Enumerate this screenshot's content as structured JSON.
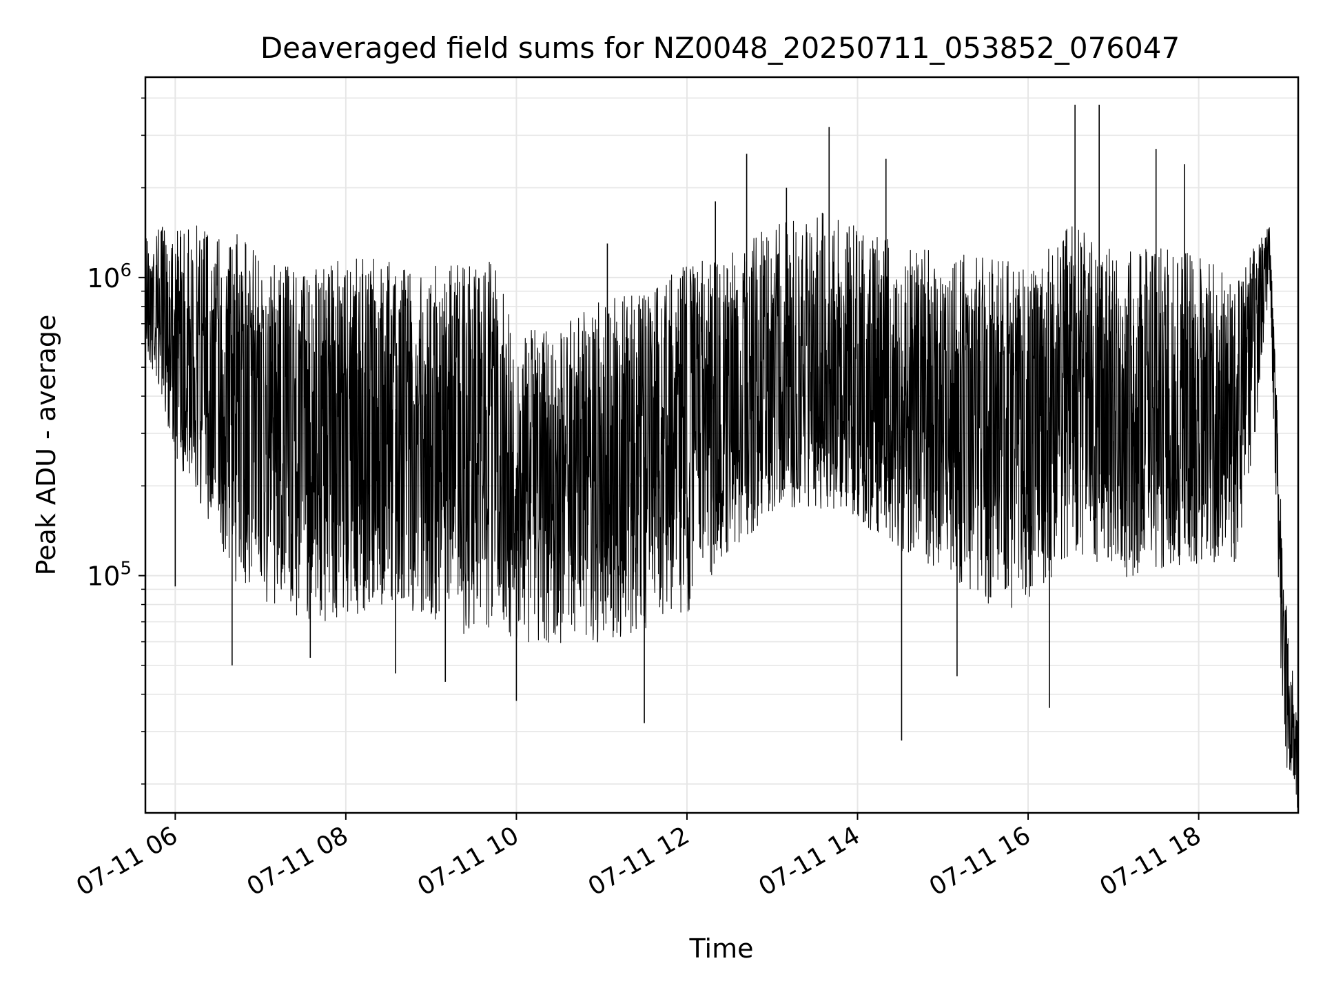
{
  "chart_data": {
    "type": "line",
    "title": "Deaveraged field sums for NZ0048_20250711_053852_076047",
    "xlabel": "Time",
    "ylabel": "Peak ADU - average",
    "yscale": "log",
    "ylim": [
      16000,
      4700000
    ],
    "xlim": [
      "2025-07-11 05:39",
      "2025-07-11 19:10"
    ],
    "grid": true,
    "legend": "none",
    "line_color": "#000000",
    "x_ticks": [
      {
        "value": "2025-07-11 06:00",
        "label": "07-11 06"
      },
      {
        "value": "2025-07-11 08:00",
        "label": "07-11 08"
      },
      {
        "value": "2025-07-11 10:00",
        "label": "07-11 10"
      },
      {
        "value": "2025-07-11 12:00",
        "label": "07-11 12"
      },
      {
        "value": "2025-07-11 14:00",
        "label": "07-11 14"
      },
      {
        "value": "2025-07-11 16:00",
        "label": "07-11 16"
      },
      {
        "value": "2025-07-11 18:00",
        "label": "07-11 18"
      }
    ],
    "y_ticks": [
      {
        "value": 100000,
        "base": "10",
        "exp": "5"
      },
      {
        "value": 1000000,
        "base": "10",
        "exp": "6"
      }
    ],
    "series": [
      {
        "x": [
          "2025-07-11 05:39",
          "2025-07-11 05:50",
          "2025-07-11 06:00",
          "2025-07-11 06:15",
          "2025-07-11 06:30",
          "2025-07-11 06:45",
          "2025-07-11 07:00",
          "2025-07-11 07:15",
          "2025-07-11 07:30",
          "2025-07-11 07:45",
          "2025-07-11 08:00",
          "2025-07-11 08:15",
          "2025-07-11 08:30",
          "2025-07-11 08:45",
          "2025-07-11 09:00",
          "2025-07-11 09:15",
          "2025-07-11 09:30",
          "2025-07-11 09:45",
          "2025-07-11 10:00",
          "2025-07-11 10:30",
          "2025-07-11 11:00",
          "2025-07-11 11:30",
          "2025-07-11 12:00",
          "2025-07-11 12:30",
          "2025-07-11 13:00",
          "2025-07-11 13:30",
          "2025-07-11 14:00",
          "2025-07-11 14:30",
          "2025-07-11 15:00",
          "2025-07-11 15:30",
          "2025-07-11 16:00",
          "2025-07-11 16:30",
          "2025-07-11 17:00",
          "2025-07-11 17:30",
          "2025-07-11 18:00",
          "2025-07-11 18:30",
          "2025-07-11 18:50",
          "2025-07-11 19:00",
          "2025-07-11 19:10"
        ],
        "y": [
          900000,
          800000,
          650000,
          600000,
          550000,
          500000,
          420000,
          350000,
          330000,
          320000,
          330000,
          340000,
          330000,
          320000,
          310000,
          300000,
          300000,
          320000,
          230000,
          200000,
          220000,
          250000,
          300000,
          380000,
          420000,
          450000,
          420000,
          380000,
          340000,
          330000,
          330000,
          380000,
          320000,
          340000,
          360000,
          380000,
          1300000,
          45000,
          20000
        ],
        "hi": [
          1500000,
          1500000,
          1500000,
          1550000,
          1500000,
          1400000,
          1200000,
          1100000,
          1100000,
          1100000,
          1200000,
          1200000,
          1200000,
          1150000,
          1100000,
          1100000,
          1100000,
          1150000,
          650000,
          700000,
          850000,
          900000,
          1100000,
          1200000,
          1500000,
          1700000,
          1500000,
          1300000,
          1200000,
          1200000,
          1100000,
          1500000,
          1250000,
          1300000,
          1200000,
          1100000,
          1500000,
          100000,
          30000
        ],
        "lo": [
          550000,
          400000,
          250000,
          180000,
          130000,
          90000,
          80000,
          75000,
          70000,
          70000,
          72000,
          75000,
          80000,
          75000,
          70000,
          65000,
          62000,
          65000,
          60000,
          58000,
          60000,
          65000,
          75000,
          120000,
          160000,
          170000,
          150000,
          120000,
          100000,
          80000,
          75000,
          120000,
          95000,
          105000,
          110000,
          110000,
          800000,
          22000,
          16000
        ],
        "spikes": [
          [
            "2025-07-11 06:00",
            92000
          ],
          [
            "2025-07-11 06:40",
            50000
          ],
          [
            "2025-07-11 07:35",
            53000
          ],
          [
            "2025-07-11 08:35",
            47000
          ],
          [
            "2025-07-11 09:10",
            44000
          ],
          [
            "2025-07-11 10:00",
            38000
          ],
          [
            "2025-07-11 11:30",
            32000
          ],
          [
            "2025-07-11 14:31",
            28000
          ],
          [
            "2025-07-11 15:10",
            46000
          ],
          [
            "2025-07-11 16:15",
            36000
          ],
          [
            "2025-07-11 12:42",
            2600000
          ],
          [
            "2025-07-11 13:40",
            3200000
          ],
          [
            "2025-07-11 14:20",
            2500000
          ],
          [
            "2025-07-11 16:33",
            3800000
          ],
          [
            "2025-07-11 16:50",
            3800000
          ],
          [
            "2025-07-11 17:30",
            2700000
          ],
          [
            "2025-07-11 17:50",
            2400000
          ],
          [
            "2025-07-11 11:04",
            1300000
          ],
          [
            "2025-07-11 12:20",
            1800000
          ],
          [
            "2025-07-11 13:10",
            2000000
          ]
        ]
      }
    ]
  }
}
